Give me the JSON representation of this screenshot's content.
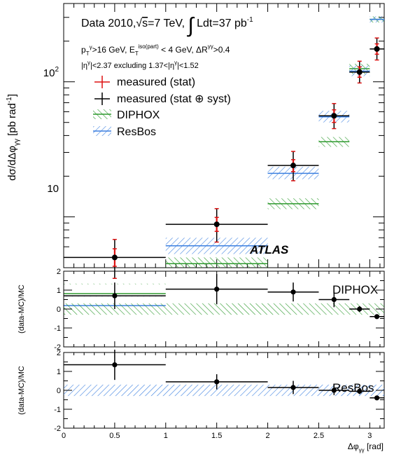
{
  "colors": {
    "measured_stat": "#dd1111",
    "measured_syst": "#000000",
    "diphox": "#2e9a2e",
    "resbos": "#3b7fe0"
  },
  "chart_data": [
    {
      "type": "line",
      "panel": "main",
      "y_scale": "log",
      "ylabel": "dσ/dΔφγγ [pb rad-1]",
      "ylim": [
        4.2,
        380
      ],
      "xlim": [
        0,
        3.1416
      ],
      "y_ticks": [
        "10",
        "10²"
      ],
      "info_lines": [
        "Data 2010,√s=7 TeV, ∫ Ldt=37 pb-1",
        "pTγ>16 GeV, ETiso(part) < 4 GeV, ΔRγγ>0.4",
        "|ηγ|<2.37 excluding 1.37<|ηγ|<1.52"
      ],
      "atlas_label": "ATLAS",
      "legend": [
        "measured (stat)",
        "measured (stat ⊕ syst)",
        "DIPHOX",
        "ResBos"
      ],
      "bins": [
        {
          "lo": 0.0,
          "hi": 1.0,
          "x": 0.5
        },
        {
          "lo": 1.0,
          "hi": 2.0,
          "x": 1.5
        },
        {
          "lo": 2.0,
          "hi": 2.5,
          "x": 2.25
        },
        {
          "lo": 2.5,
          "hi": 2.8,
          "x": 2.65
        },
        {
          "lo": 2.8,
          "hi": 3.0,
          "x": 2.9
        },
        {
          "lo": 3.0,
          "hi": 3.1416,
          "x": 3.07
        }
      ],
      "series": [
        {
          "name": "measured (stat ⊕ syst)",
          "values": [
            5.0,
            8.8,
            24,
            56,
            118,
            175
          ],
          "err_stat_lo": [
            0.7,
            1.0,
            2.4,
            6,
            10,
            15
          ],
          "err_stat_hi": [
            0.8,
            1.1,
            2.5,
            6,
            11,
            16
          ],
          "err_syst_lo": [
            1.5,
            2.3,
            5.5,
            11,
            20,
            30
          ],
          "err_syst_hi": [
            1.8,
            2.7,
            6.5,
            13,
            24,
            36
          ]
        },
        {
          "name": "DIPHOX",
          "band_center": [
            2.7,
            4.5,
            12.5,
            36,
            125,
            290
          ],
          "band_lo": [
            2.3,
            4.1,
            11.4,
            33,
            114,
            275
          ],
          "band_hi": [
            3.2,
            5.0,
            13.7,
            39,
            136,
            305
          ]
        },
        {
          "name": "ResBos",
          "band_center": [
            2.2,
            6.1,
            21,
            55,
            120,
            290
          ],
          "band_lo": [
            1.9,
            5.3,
            19,
            50,
            110,
            275
          ],
          "band_hi": [
            2.6,
            7.0,
            23.5,
            61,
            132,
            305
          ]
        }
      ]
    },
    {
      "type": "line",
      "panel": "ratio-diphox",
      "label": "DIPHOX",
      "ylabel": "(data-MC)/MC",
      "ylim": [
        -2,
        2
      ],
      "y_ticks": [
        "-2",
        "-1",
        "0",
        "1",
        "2"
      ],
      "band": [
        -0.3,
        0.3
      ],
      "values": [
        0.7,
        1.05,
        0.9,
        0.5,
        0.0,
        -0.4
      ],
      "err_lo": [
        0.7,
        0.8,
        0.5,
        0.4,
        0.15,
        0.12
      ],
      "err_hi": [
        0.7,
        0.8,
        0.5,
        0.4,
        0.15,
        0.12
      ]
    },
    {
      "type": "line",
      "panel": "ratio-resbos",
      "label": "ResBos",
      "ylabel": "(data-MC)/MC",
      "xlabel": "Δφγγ [rad]",
      "ylim": [
        -2,
        2
      ],
      "xlim": [
        0,
        3.1416
      ],
      "y_ticks": [
        "-2",
        "-1",
        "0",
        "1",
        "2"
      ],
      "x_ticks": [
        "0",
        "0.5",
        "1",
        "1.5",
        "2",
        "2.5",
        "3"
      ],
      "band": [
        -0.3,
        0.3
      ],
      "values": [
        1.35,
        0.45,
        0.15,
        0.0,
        -0.05,
        -0.4
      ],
      "err_lo": [
        0.8,
        0.4,
        0.35,
        0.25,
        0.15,
        0.12
      ],
      "err_hi": [
        0.8,
        0.4,
        0.35,
        0.25,
        0.15,
        0.12
      ]
    }
  ]
}
